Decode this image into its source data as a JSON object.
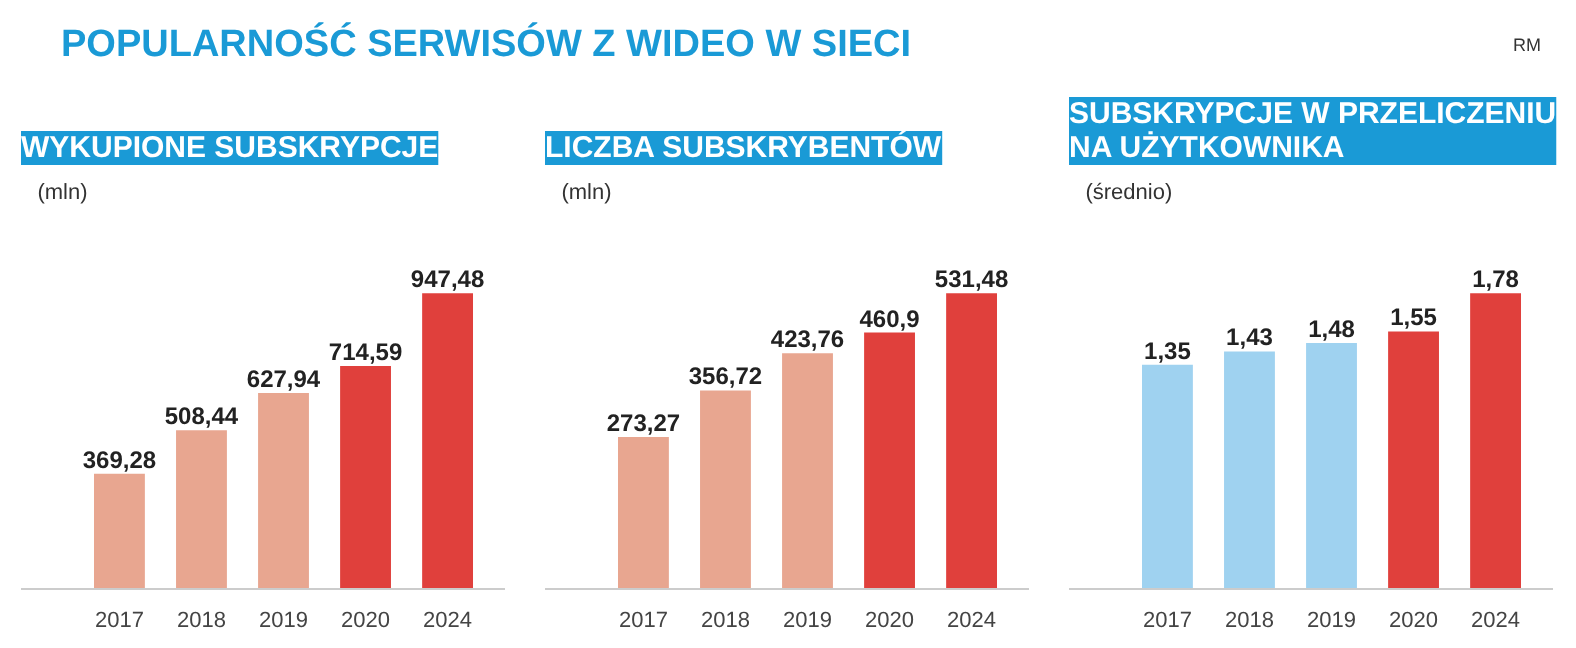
{
  "chart_data": [
    {
      "type": "other",
      "title": "POPULARNOŚĆ SERWISÓW Z WIDEO W SIECI",
      "annotations": [
        "RM"
      ]
    },
    {
      "type": "bar",
      "title": "WYKUPIONE SUBSKRYPCJE",
      "subtitle": "(mln)",
      "categories": [
        "2017",
        "2018",
        "2019",
        "2020",
        "2024"
      ],
      "values": [
        369.28,
        508.44,
        627.94,
        714.59,
        947.48
      ],
      "value_labels": [
        "369,28",
        "508,44",
        "627,94",
        "714,59",
        "947,48"
      ],
      "colors": [
        "#e8a690",
        "#e8a690",
        "#e8a690",
        "#e0403c",
        "#e0403c"
      ],
      "grid": false
    },
    {
      "type": "bar",
      "title": "LICZBA SUBSKRYBENTÓW",
      "subtitle": "(mln)",
      "categories": [
        "2017",
        "2018",
        "2019",
        "2020",
        "2024"
      ],
      "values": [
        273.27,
        356.72,
        423.76,
        460.9,
        531.48
      ],
      "value_labels": [
        "273,27",
        "356,72",
        "423,76",
        "460,9",
        "531,48"
      ],
      "colors": [
        "#e8a690",
        "#e8a690",
        "#e8a690",
        "#e0403c",
        "#e0403c"
      ],
      "grid": false
    },
    {
      "type": "bar",
      "title": "SUBSKRYPCJE W PRZELICZENIU\nNA UŻYTKOWNIKA",
      "subtitle": "(średnio)",
      "categories": [
        "2017",
        "2018",
        "2019",
        "2020",
        "2024"
      ],
      "values": [
        1.35,
        1.43,
        1.48,
        1.55,
        1.78
      ],
      "value_labels": [
        "1,35",
        "1,43",
        "1,48",
        "1,55",
        "1,78"
      ],
      "colors": [
        "#9fd2f0",
        "#9fd2f0",
        "#9fd2f0",
        "#e0403c",
        "#e0403c"
      ],
      "grid": false
    }
  ]
}
